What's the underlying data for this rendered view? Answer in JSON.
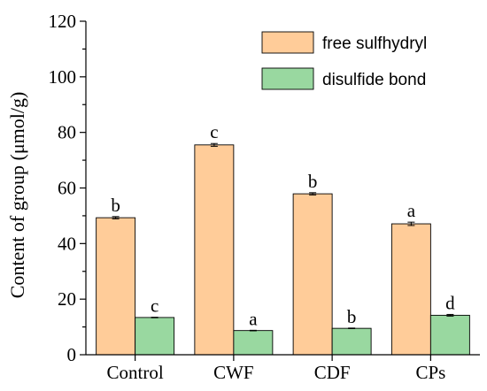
{
  "chart_data": {
    "type": "bar",
    "categories": [
      "Control",
      "CWF",
      "CDF",
      "CPs"
    ],
    "series": [
      {
        "name": "free sulfhydryl",
        "color": "#FFCC99",
        "values": [
          49.3,
          75.5,
          57.9,
          47.1
        ],
        "errors": [
          0.4,
          0.5,
          0.4,
          0.6
        ],
        "letters": [
          "b",
          "c",
          "b",
          "a"
        ]
      },
      {
        "name": "disulfide bond",
        "color": "#99D8A0",
        "values": [
          13.4,
          8.7,
          9.5,
          14.2
        ],
        "errors": [
          0.1,
          0.1,
          0.1,
          0.3
        ],
        "letters": [
          "c",
          "a",
          "b",
          "d"
        ]
      }
    ],
    "ylabel": "Content of group (μmol/g)",
    "xlabel": "",
    "ylim": [
      0,
      120
    ],
    "yticks": [
      0,
      20,
      40,
      60,
      80,
      100,
      120
    ],
    "grid": false,
    "legend_position": "top-right"
  }
}
